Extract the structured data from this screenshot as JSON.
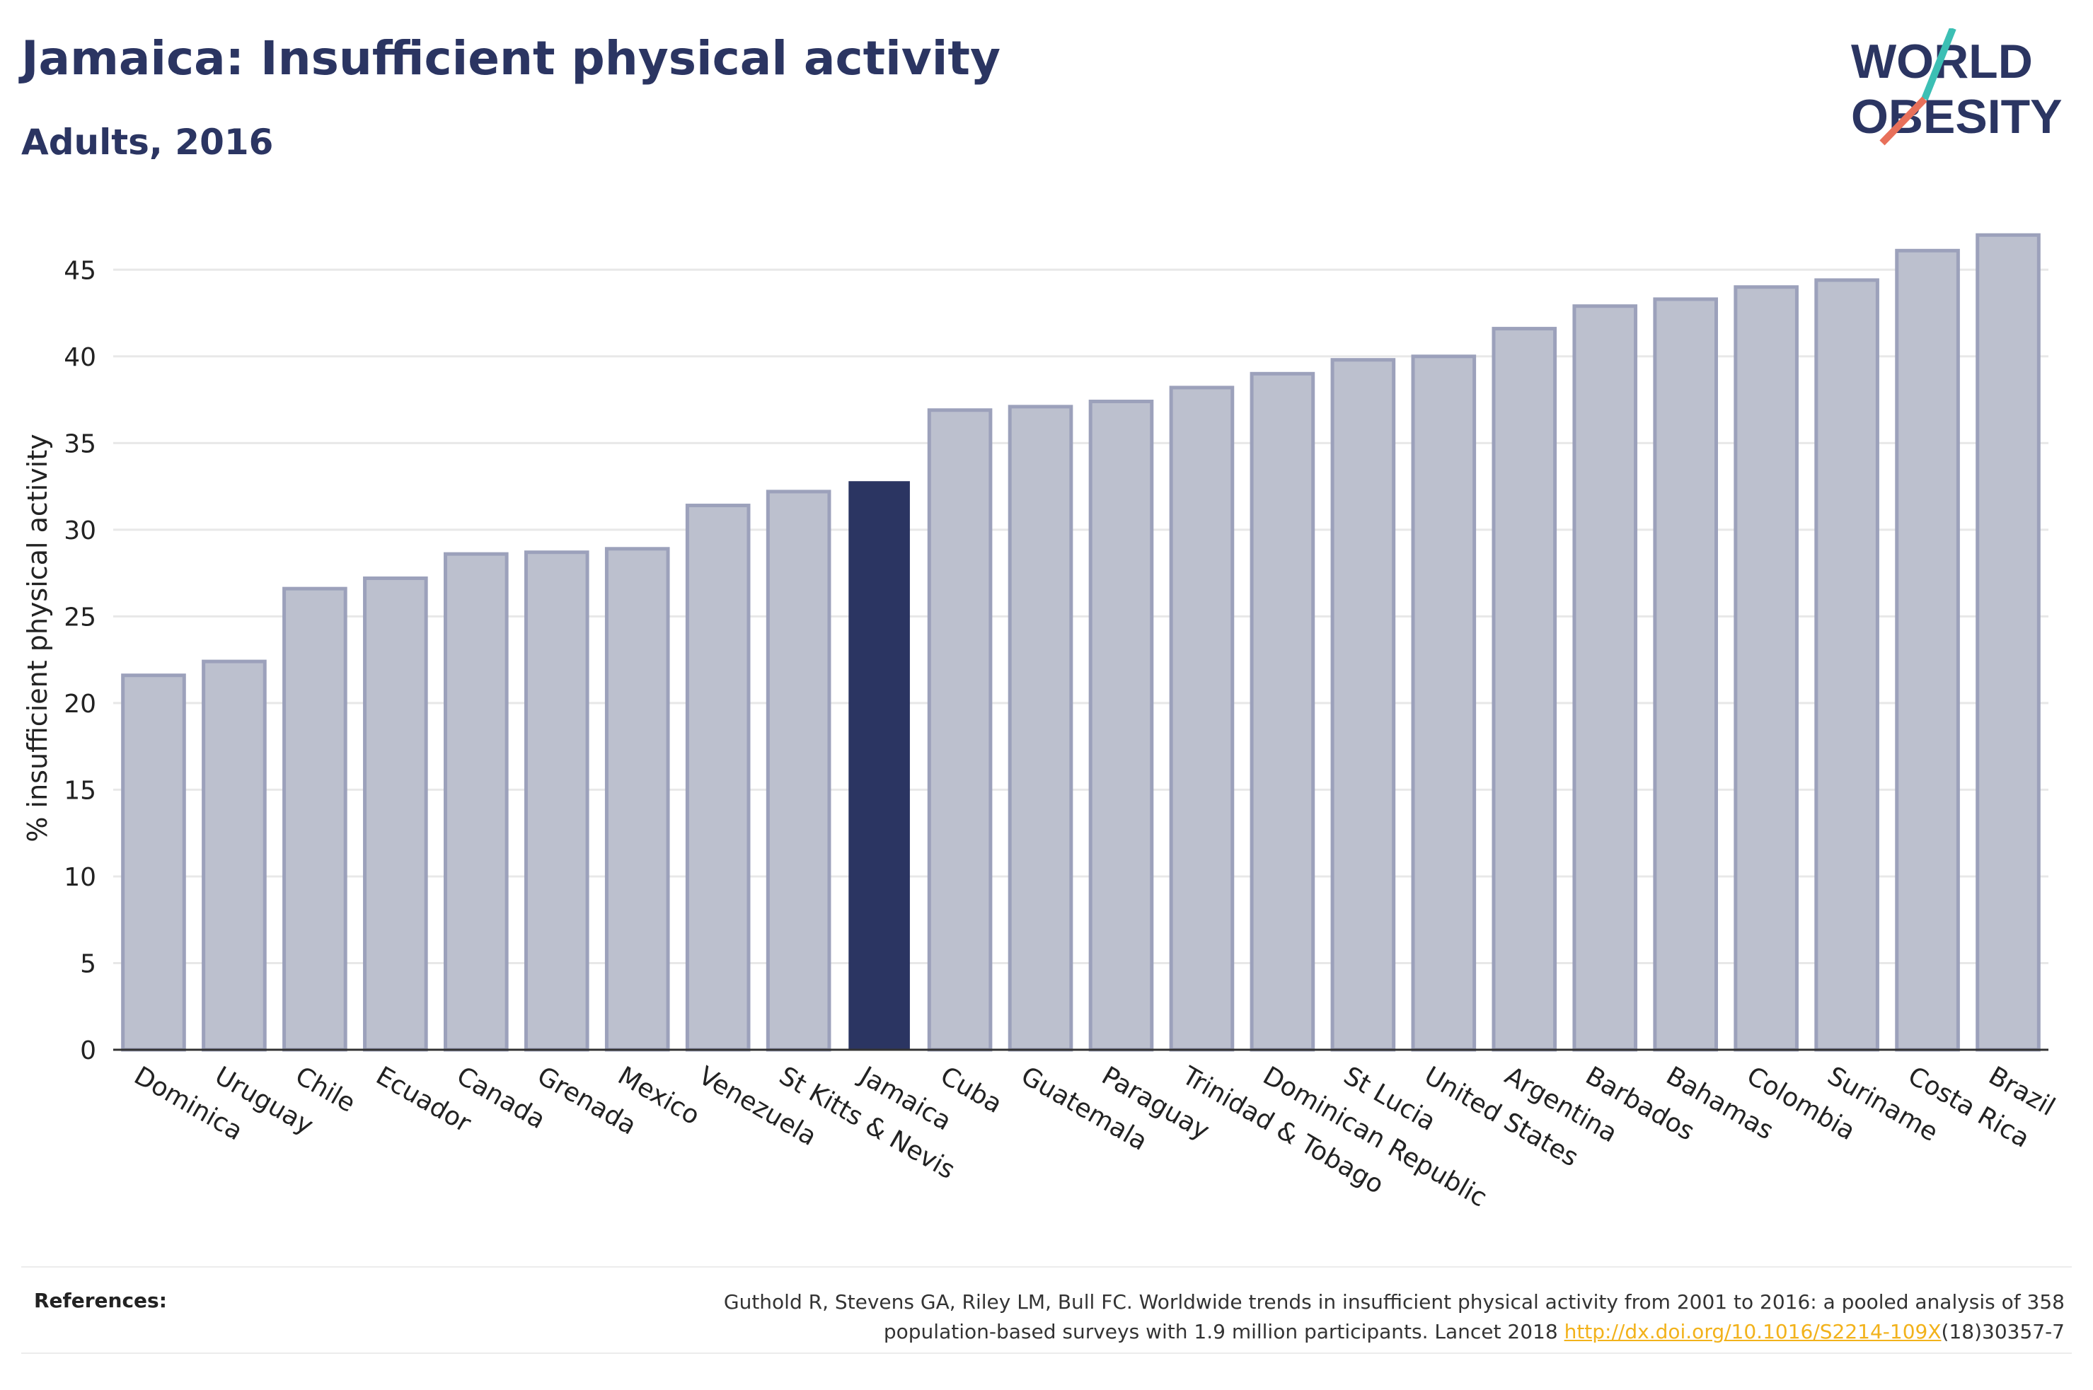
{
  "title": "Jamaica: Insufficient physical activity",
  "subtitle": "Adults, 2016",
  "logo": {
    "line1": "WORLD",
    "line2": "OBESITY"
  },
  "colors": {
    "highlight": "#2b3562",
    "bar": "#bcc0ce",
    "bar_border": "#9ca1bb",
    "grid": "#e8e8e8",
    "teal": "#3cbfb4",
    "coral": "#e8705a"
  },
  "chart_data": {
    "type": "bar",
    "ylabel": "% insufficient physical activity",
    "ylim": [
      0,
      47.5
    ],
    "yticks": [
      0,
      5,
      10,
      15,
      20,
      25,
      30,
      35,
      40,
      45
    ],
    "grid": true,
    "highlight": "Jamaica",
    "categories": [
      "Dominica",
      "Uruguay",
      "Chile",
      "Ecuador",
      "Canada",
      "Grenada",
      "Mexico",
      "Venezuela",
      "St Kitts & Nevis",
      "Jamaica",
      "Cuba",
      "Guatemala",
      "Paraguay",
      "Trinidad & Tobago",
      "Dominican Republic",
      "St Lucia",
      "United States",
      "Argentina",
      "Barbados",
      "Bahamas",
      "Colombia",
      "Suriname",
      "Costa Rica",
      "Brazil"
    ],
    "values": [
      21.6,
      22.4,
      26.6,
      27.2,
      28.6,
      28.7,
      28.9,
      31.4,
      32.2,
      32.8,
      36.9,
      37.1,
      37.4,
      38.2,
      39.0,
      39.8,
      40.0,
      41.6,
      42.9,
      43.3,
      44.0,
      44.4,
      46.1,
      47.0
    ]
  },
  "references": {
    "label": "References:",
    "text1": "Guthold R, Stevens GA, Riley LM, Bull FC. Worldwide trends in insufficient physical activity from 2001 to 2016: a pooled analysis of 358",
    "text2": "population-based surveys with 1.9 million participants. Lancet 2018 ",
    "link": "http://dx.doi.org/10.1016/S2214-109X",
    "text3": "(18)30357-7"
  }
}
